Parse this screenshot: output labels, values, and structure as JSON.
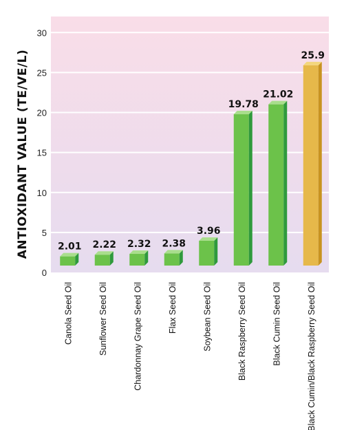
{
  "chart_data": {
    "type": "bar",
    "title": "",
    "xlabel": "",
    "ylabel": "ANTIOXIDANT VALUE (TE/VE/L)",
    "ylim": [
      0,
      32
    ],
    "yticks": [
      0,
      5,
      10,
      15,
      20,
      25,
      30
    ],
    "grid": true,
    "legend": "none",
    "categories": [
      "Canola Seed Oil",
      "Sunflower Seed Oil",
      "Chardonnay Grape Seed Oil",
      "Flax Seed Oil",
      "Soybean Seed Oil",
      "Black Raspberry Seed Oil",
      "Black Cumin Seed Oil",
      "Black Cumin/Black Raspberry Seed Oil"
    ],
    "values": [
      2.01,
      2.22,
      2.32,
      2.38,
      3.96,
      19.78,
      21.02,
      25.9
    ],
    "value_labels": [
      "2.01",
      "2.22",
      "2.32",
      "2.38",
      "3.96",
      "19.78",
      "21.02",
      "25.9"
    ],
    "highlight_index": 7,
    "colors": {
      "bar_front": "#6cc24a",
      "bar_side": "#2f9a3c",
      "bar_top": "#a9de8c",
      "highlight_front": "#e6b84a",
      "highlight_side": "#c89320",
      "highlight_top": "#f3d67d",
      "bg_top": "#f9dde8",
      "bg_bottom": "#e6dcef",
      "grid": "#ffffff"
    }
  }
}
